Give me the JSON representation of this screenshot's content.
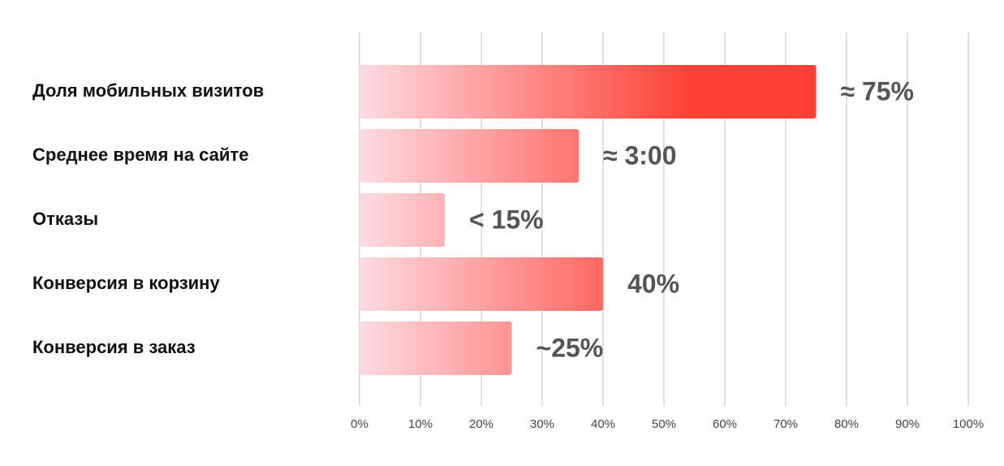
{
  "chart_data": {
    "type": "bar",
    "orientation": "horizontal",
    "categories": [
      "Доля мобильных визитов",
      "Среднее время на сайте",
      "Отказы",
      "Конверсия в корзину",
      "Конверсия в заказ"
    ],
    "values": [
      75,
      36,
      14,
      40,
      25
    ],
    "value_labels": [
      "≈ 75%",
      "≈ 3:00",
      "< 15%",
      "40%",
      "~25%"
    ],
    "gradient": [
      "#fcdbe1",
      "#ff4036"
    ],
    "xlim": [
      0,
      100
    ],
    "xticks": [
      {
        "value": 0,
        "label": "0%"
      },
      {
        "value": 10,
        "label": "10%"
      },
      {
        "value": 20,
        "label": "20%"
      },
      {
        "value": 30,
        "label": "30%"
      },
      {
        "value": 40,
        "label": "40%"
      },
      {
        "value": 50,
        "label": "50%"
      },
      {
        "value": 60,
        "label": "60%"
      },
      {
        "value": 70,
        "label": "70%"
      },
      {
        "value": 80,
        "label": "80%"
      },
      {
        "value": 90,
        "label": "90%"
      },
      {
        "value": 100,
        "label": "100%"
      }
    ],
    "grid": true
  }
}
